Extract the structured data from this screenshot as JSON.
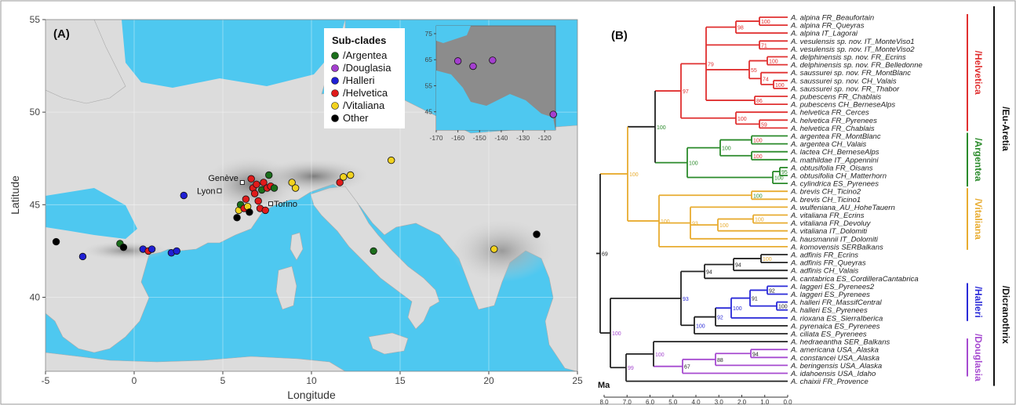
{
  "panel_a": {
    "label": "(A)",
    "xlabel": "Longitude",
    "ylabel": "Latitude",
    "x_ticks": [
      "-5",
      "0",
      "5",
      "10",
      "15",
      "20",
      "25"
    ],
    "y_ticks": [
      "40",
      "45",
      "50",
      "55"
    ],
    "legend": {
      "title": "Sub-clades",
      "entries": [
        {
          "label": "/Argentea",
          "color": "#1b6e1b"
        },
        {
          "label": "/Douglasia",
          "color": "#a43fcf"
        },
        {
          "label": "/Halleri",
          "color": "#1f1fd4"
        },
        {
          "label": "/Helvetica",
          "color": "#e01b1b"
        },
        {
          "label": "/Vitaliana",
          "color": "#f2d21e"
        },
        {
          "label": "Other",
          "color": "#000000"
        }
      ]
    },
    "cities": [
      {
        "name": "Genève",
        "lon": 6.1,
        "lat": 46.2
      },
      {
        "name": "Lyon",
        "lon": 4.8,
        "lat": 45.75
      },
      {
        "name": "Torino",
        "lon": 7.7,
        "lat": 45.05
      }
    ],
    "points": [
      {
        "lon": -4.4,
        "lat": 43.0,
        "group": "Other"
      },
      {
        "lon": -2.9,
        "lat": 42.2,
        "group": "/Halleri"
      },
      {
        "lon": -0.8,
        "lat": 42.9,
        "group": "/Argentea"
      },
      {
        "lon": -0.6,
        "lat": 42.7,
        "group": "Other"
      },
      {
        "lon": 0.5,
        "lat": 42.6,
        "group": "/Halleri"
      },
      {
        "lon": 0.8,
        "lat": 42.5,
        "group": "/Helvetica"
      },
      {
        "lon": 1.0,
        "lat": 42.6,
        "group": "/Halleri"
      },
      {
        "lon": 2.1,
        "lat": 42.4,
        "group": "/Halleri"
      },
      {
        "lon": 2.4,
        "lat": 42.5,
        "group": "/Halleri"
      },
      {
        "lon": 2.8,
        "lat": 45.5,
        "group": "/Halleri"
      },
      {
        "lon": 5.8,
        "lat": 44.3,
        "group": "Other"
      },
      {
        "lon": 5.9,
        "lat": 44.7,
        "group": "/Vitaliana"
      },
      {
        "lon": 6.0,
        "lat": 45.0,
        "group": "/Argentea"
      },
      {
        "lon": 6.2,
        "lat": 44.8,
        "group": "/Helvetica"
      },
      {
        "lon": 6.3,
        "lat": 45.3,
        "group": "/Helvetica"
      },
      {
        "lon": 6.4,
        "lat": 44.9,
        "group": "/Vitaliana"
      },
      {
        "lon": 6.5,
        "lat": 44.6,
        "group": "Other"
      },
      {
        "lon": 6.6,
        "lat": 46.4,
        "group": "/Helvetica"
      },
      {
        "lon": 6.7,
        "lat": 45.9,
        "group": "/Helvetica"
      },
      {
        "lon": 6.8,
        "lat": 45.6,
        "group": "/Helvetica"
      },
      {
        "lon": 6.9,
        "lat": 46.1,
        "group": "/Helvetica"
      },
      {
        "lon": 7.0,
        "lat": 45.2,
        "group": "/Helvetica"
      },
      {
        "lon": 7.1,
        "lat": 44.8,
        "group": "/Helvetica"
      },
      {
        "lon": 7.2,
        "lat": 45.8,
        "group": "/Argentea"
      },
      {
        "lon": 7.3,
        "lat": 46.2,
        "group": "/Helvetica"
      },
      {
        "lon": 7.4,
        "lat": 44.7,
        "group": "/Helvetica"
      },
      {
        "lon": 7.5,
        "lat": 45.9,
        "group": "/Helvetica"
      },
      {
        "lon": 7.6,
        "lat": 46.6,
        "group": "/Argentea"
      },
      {
        "lon": 7.7,
        "lat": 46.0,
        "group": "/Helvetica"
      },
      {
        "lon": 7.9,
        "lat": 45.9,
        "group": "/Argentea"
      },
      {
        "lon": 8.9,
        "lat": 46.2,
        "group": "/Vitaliana"
      },
      {
        "lon": 9.1,
        "lat": 45.9,
        "group": "/Vitaliana"
      },
      {
        "lon": 11.6,
        "lat": 46.2,
        "group": "/Helvetica"
      },
      {
        "lon": 11.8,
        "lat": 46.5,
        "group": "/Vitaliana"
      },
      {
        "lon": 12.2,
        "lat": 46.6,
        "group": "/Vitaliana"
      },
      {
        "lon": 14.5,
        "lat": 47.4,
        "group": "/Vitaliana"
      },
      {
        "lon": 13.5,
        "lat": 42.5,
        "group": "/Argentea"
      },
      {
        "lon": 20.3,
        "lat": 42.6,
        "group": "/Vitaliana"
      },
      {
        "lon": 22.7,
        "lat": 43.4,
        "group": "Other"
      }
    ],
    "inset": {
      "x_ticks": [
        "-170",
        "-160",
        "-150",
        "-140",
        "-130",
        "-120"
      ],
      "y_ticks": [
        "45",
        "55",
        "65",
        "75"
      ],
      "points": [
        {
          "lon": -160,
          "lat": 64.5,
          "group": "/Douglasia"
        },
        {
          "lon": -153,
          "lat": 62.5,
          "group": "/Douglasia"
        },
        {
          "lon": -144,
          "lat": 64.8,
          "group": "/Douglasia"
        },
        {
          "lon": -116,
          "lat": 44.0,
          "group": "/Douglasia"
        }
      ]
    }
  },
  "panel_b": {
    "label": "(B)",
    "axis_label": "Ma",
    "axis_ticks": [
      "8.0",
      "7.0",
      "6.0",
      "5.0",
      "4.0",
      "3.0",
      "2.0",
      "1.0",
      "0.0"
    ],
    "clade_labels": [
      {
        "text": "/Helvetica",
        "color": "#e03030"
      },
      {
        "text": "/Argentea",
        "color": "#2a8a2a"
      },
      {
        "text": "/Vitaliana",
        "color": "#e8ac30"
      },
      {
        "text": "/Halleri",
        "color": "#2a2ad8"
      },
      {
        "text": "/Douglasia",
        "color": "#a64ad0"
      }
    ],
    "outer_labels": [
      "/Eu-Aretia",
      "/Dicranothrix"
    ],
    "tips": [
      "A. alpina FR_Beaufortain",
      "A. alpina FR_Queyras",
      "A. alpina IT_Lagorai",
      "A. vesulensis sp. nov. IT_MonteViso1",
      "A. vesulensis sp. nov. IT_MonteViso2",
      "A. delphinensis sp. nov. FR_Ecrins",
      "A. delphinensis sp. nov. FR_Belledonne",
      "A. saussurei sp. nov. FR_MontBlanc",
      "A. saussurei sp. nov. CH_Valais",
      "A. saussurei sp. nov. FR_Thabor",
      "A. pubescens FR_Chablais",
      "A. pubescens CH_BerneseAlps",
      "A. helvetica FR_Cerces",
      "A. helvetica FR_Pyrenees",
      "A. helvetica FR_Chablais",
      "A. argentea FR_MontBlanc",
      "A. argentea CH_Valais",
      "A. lactea CH_BerneseAlps",
      "A. mathildae IT_Appennini",
      "A. obtusifolia FR_Oisans",
      "A. obtusifolia CH_Matterhorn",
      "A. cylindrica ES_Pyrenees",
      "A. brevis CH_Ticino2",
      "A. brevis CH_Ticino1",
      "A. wulfeniana_AU_HoheTauern",
      "A. vitaliana FR_Ecrins",
      "A. vitaliana FR_Devoluy",
      "A. vitaliana IT_Dolomiti",
      "A. hausmannii IT_Dolomiti",
      "A. komovensis SERBalkans",
      "A. adfinis FR_Ecrins",
      "A. adfinis FR_Queyras",
      "A. adfinis CH_Valais",
      "A. cantabrica ES_CordilleraCantabrica",
      "A. laggeri ES_Pyrenees2",
      "A. laggeri ES_Pyrenees",
      "A. halleri FR_MassifCentral",
      "A. halleri ES_Pyrenees",
      "A. rioxana ES_SierraIberica",
      "A. pyrenaica ES_Pyrenees",
      "A. ciliata ES_Pyrenees",
      "A. hedraeantha SER_Balkans",
      "A. americana USA_Alaska",
      "A. constancei USA_Alaska",
      "A. beringensis USA_Alaska",
      "A. idahoensis USA_Idaho",
      "A. chaixii FR_Provence"
    ],
    "bootstrap": [
      {
        "v": "100",
        "color": "#e03030"
      },
      {
        "v": "98",
        "color": "#e03030"
      },
      {
        "v": "71",
        "color": "#e03030"
      },
      {
        "v": "100",
        "color": "#e03030"
      },
      {
        "v": "100",
        "color": "#e03030"
      },
      {
        "v": "74",
        "color": "#e03030"
      },
      {
        "v": "55",
        "color": "#e03030"
      },
      {
        "v": "86",
        "color": "#e03030"
      },
      {
        "v": "79",
        "color": "#e03030"
      },
      {
        "v": "59",
        "color": "#e03030"
      },
      {
        "v": "100",
        "color": "#e03030"
      },
      {
        "v": "97",
        "color": "#e03030"
      },
      {
        "v": "100",
        "color": "#e03030"
      },
      {
        "v": "100",
        "color": "#e03030"
      },
      {
        "v": "100",
        "color": "#2a8a2a"
      },
      {
        "v": "95",
        "color": "#2a8a2a"
      },
      {
        "v": "100",
        "color": "#2a8a2a"
      },
      {
        "v": "100",
        "color": "#2a8a2a"
      },
      {
        "v": "100",
        "color": "#2a8a2a"
      },
      {
        "v": "100",
        "color": "#2a8a2a"
      },
      {
        "v": "100",
        "color": "#e8ac30"
      },
      {
        "v": "100",
        "color": "#e8ac30"
      },
      {
        "v": "93",
        "color": "#e8ac30"
      },
      {
        "v": "100",
        "color": "#e8ac30"
      },
      {
        "v": "100",
        "color": "#e8ac30"
      },
      {
        "v": "100",
        "color": "#e8ac30"
      },
      {
        "v": "94",
        "color": "#222222"
      },
      {
        "v": "94",
        "color": "#222222"
      },
      {
        "v": "92",
        "color": "#222222"
      },
      {
        "v": "100",
        "color": "#222222"
      },
      {
        "v": "91",
        "color": "#222222"
      },
      {
        "v": "100",
        "color": "#2a2ad8"
      },
      {
        "v": "92",
        "color": "#2a2ad8"
      },
      {
        "v": "100",
        "color": "#2a2ad8"
      },
      {
        "v": "93",
        "color": "#2a2ad8"
      },
      {
        "v": "94",
        "color": "#222222"
      },
      {
        "v": "88",
        "color": "#222222"
      },
      {
        "v": "67",
        "color": "#222222"
      },
      {
        "v": "100",
        "color": "#a64ad0"
      },
      {
        "v": "99",
        "color": "#a64ad0"
      },
      {
        "v": "100",
        "color": "#a64ad0"
      },
      {
        "v": "69",
        "color": "#222222"
      },
      {
        "v": "99",
        "color": "#222222"
      },
      {
        "v": "94",
        "color": "#222222"
      }
    ]
  }
}
